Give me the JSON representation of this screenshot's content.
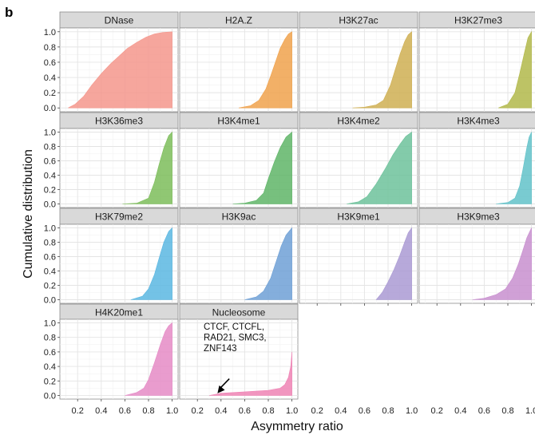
{
  "figure": {
    "panel_letter": "b"
  },
  "chart_data": {
    "type": "area",
    "subtype": "faceted cumulative distribution (ECDF)",
    "xlabel": "Asymmetry ratio",
    "ylabel": "Cumulative distribution",
    "xlim": [
      0.05,
      1.05
    ],
    "ylim": [
      -0.05,
      1.05
    ],
    "x_ticks": [
      0.2,
      0.4,
      0.6,
      0.8,
      1.0
    ],
    "x_tick_labels": [
      "0.2",
      "0.4",
      "0.6",
      "0.8",
      "1.0"
    ],
    "y_ticks": [
      0.0,
      0.2,
      0.4,
      0.6,
      0.8,
      1.0
    ],
    "y_tick_labels": [
      "0.0",
      "0.2",
      "0.4",
      "0.6",
      "0.8",
      "1.0"
    ],
    "grid": true,
    "facets": [
      {
        "name": "DNase",
        "color": "#f4978c",
        "points": [
          [
            0.12,
            0.0
          ],
          [
            0.18,
            0.05
          ],
          [
            0.25,
            0.15
          ],
          [
            0.32,
            0.3
          ],
          [
            0.4,
            0.45
          ],
          [
            0.48,
            0.58
          ],
          [
            0.55,
            0.68
          ],
          [
            0.62,
            0.78
          ],
          [
            0.7,
            0.86
          ],
          [
            0.78,
            0.93
          ],
          [
            0.85,
            0.97
          ],
          [
            0.92,
            0.99
          ],
          [
            1.0,
            1.0
          ]
        ]
      },
      {
        "name": "H2A.Z",
        "color": "#f0a24c",
        "points": [
          [
            0.55,
            0.0
          ],
          [
            0.65,
            0.03
          ],
          [
            0.72,
            0.1
          ],
          [
            0.78,
            0.25
          ],
          [
            0.82,
            0.42
          ],
          [
            0.86,
            0.6
          ],
          [
            0.9,
            0.78
          ],
          [
            0.94,
            0.9
          ],
          [
            0.97,
            0.97
          ],
          [
            1.0,
            1.0
          ]
        ]
      },
      {
        "name": "H3K27ac",
        "color": "#cfaf52",
        "points": [
          [
            0.5,
            0.0
          ],
          [
            0.6,
            0.01
          ],
          [
            0.7,
            0.04
          ],
          [
            0.76,
            0.1
          ],
          [
            0.82,
            0.3
          ],
          [
            0.86,
            0.5
          ],
          [
            0.9,
            0.7
          ],
          [
            0.94,
            0.87
          ],
          [
            0.97,
            0.96
          ],
          [
            1.0,
            1.0
          ]
        ]
      },
      {
        "name": "H3K27me3",
        "color": "#b2b84a",
        "points": [
          [
            0.72,
            0.0
          ],
          [
            0.8,
            0.05
          ],
          [
            0.86,
            0.2
          ],
          [
            0.9,
            0.45
          ],
          [
            0.94,
            0.72
          ],
          [
            0.97,
            0.92
          ],
          [
            1.0,
            1.0
          ]
        ]
      },
      {
        "name": "H3K36me3",
        "color": "#7dbd5a",
        "points": [
          [
            0.58,
            0.0
          ],
          [
            0.7,
            0.01
          ],
          [
            0.8,
            0.08
          ],
          [
            0.85,
            0.3
          ],
          [
            0.89,
            0.55
          ],
          [
            0.93,
            0.78
          ],
          [
            0.97,
            0.95
          ],
          [
            1.0,
            1.0
          ]
        ]
      },
      {
        "name": "H3K4me1",
        "color": "#5fb567",
        "points": [
          [
            0.5,
            0.0
          ],
          [
            0.6,
            0.01
          ],
          [
            0.7,
            0.05
          ],
          [
            0.76,
            0.15
          ],
          [
            0.8,
            0.35
          ],
          [
            0.85,
            0.58
          ],
          [
            0.9,
            0.78
          ],
          [
            0.95,
            0.93
          ],
          [
            1.0,
            1.0
          ]
        ]
      },
      {
        "name": "H3K4me2",
        "color": "#6dc29b",
        "points": [
          [
            0.45,
            0.0
          ],
          [
            0.55,
            0.03
          ],
          [
            0.62,
            0.1
          ],
          [
            0.7,
            0.28
          ],
          [
            0.78,
            0.5
          ],
          [
            0.84,
            0.68
          ],
          [
            0.9,
            0.83
          ],
          [
            0.95,
            0.94
          ],
          [
            1.0,
            1.0
          ]
        ]
      },
      {
        "name": "H3K4me3",
        "color": "#62c2c9",
        "points": [
          [
            0.7,
            0.0
          ],
          [
            0.8,
            0.02
          ],
          [
            0.86,
            0.08
          ],
          [
            0.9,
            0.25
          ],
          [
            0.93,
            0.5
          ],
          [
            0.96,
            0.78
          ],
          [
            0.98,
            0.93
          ],
          [
            1.0,
            1.0
          ]
        ]
      },
      {
        "name": "H3K79me2",
        "color": "#5bb7e2",
        "points": [
          [
            0.65,
            0.0
          ],
          [
            0.75,
            0.05
          ],
          [
            0.8,
            0.15
          ],
          [
            0.85,
            0.35
          ],
          [
            0.89,
            0.58
          ],
          [
            0.93,
            0.8
          ],
          [
            0.97,
            0.95
          ],
          [
            1.0,
            1.0
          ]
        ]
      },
      {
        "name": "H3K9ac",
        "color": "#6ea0d6",
        "points": [
          [
            0.6,
            0.0
          ],
          [
            0.7,
            0.04
          ],
          [
            0.76,
            0.12
          ],
          [
            0.82,
            0.3
          ],
          [
            0.87,
            0.55
          ],
          [
            0.91,
            0.75
          ],
          [
            0.95,
            0.9
          ],
          [
            1.0,
            1.0
          ]
        ]
      },
      {
        "name": "H3K9me1",
        "color": "#aa9ad3",
        "points": [
          [
            0.7,
            0.0
          ],
          [
            0.75,
            0.1
          ],
          [
            0.8,
            0.25
          ],
          [
            0.85,
            0.42
          ],
          [
            0.9,
            0.62
          ],
          [
            0.94,
            0.8
          ],
          [
            0.97,
            0.93
          ],
          [
            1.0,
            1.0
          ]
        ]
      },
      {
        "name": "H3K9me3",
        "color": "#c88fcf",
        "points": [
          [
            0.5,
            0.0
          ],
          [
            0.6,
            0.02
          ],
          [
            0.7,
            0.07
          ],
          [
            0.78,
            0.15
          ],
          [
            0.84,
            0.3
          ],
          [
            0.89,
            0.5
          ],
          [
            0.93,
            0.7
          ],
          [
            0.96,
            0.86
          ],
          [
            1.0,
            1.0
          ]
        ]
      },
      {
        "name": "H4K20me1",
        "color": "#e58bc6",
        "points": [
          [
            0.6,
            0.0
          ],
          [
            0.7,
            0.04
          ],
          [
            0.76,
            0.1
          ],
          [
            0.8,
            0.22
          ],
          [
            0.85,
            0.45
          ],
          [
            0.9,
            0.7
          ],
          [
            0.94,
            0.88
          ],
          [
            0.97,
            0.96
          ],
          [
            1.0,
            1.0
          ]
        ]
      },
      {
        "name": "Nucleosome",
        "color": "#ef82b4",
        "points": [
          [
            0.3,
            0.0
          ],
          [
            0.4,
            0.03
          ],
          [
            0.6,
            0.05
          ],
          [
            0.8,
            0.07
          ],
          [
            0.9,
            0.1
          ],
          [
            0.94,
            0.15
          ],
          [
            0.97,
            0.25
          ],
          [
            0.99,
            0.4
          ],
          [
            1.0,
            0.6
          ]
        ]
      }
    ],
    "annotations": [
      {
        "facet": "Nucleosome",
        "lines": [
          "CTCF, CTCFL,",
          "RAD21, SMC3,",
          "ZNF143"
        ],
        "arrow_from": [
          0.47,
          0.23
        ],
        "arrow_to": [
          0.37,
          0.03
        ]
      }
    ]
  }
}
